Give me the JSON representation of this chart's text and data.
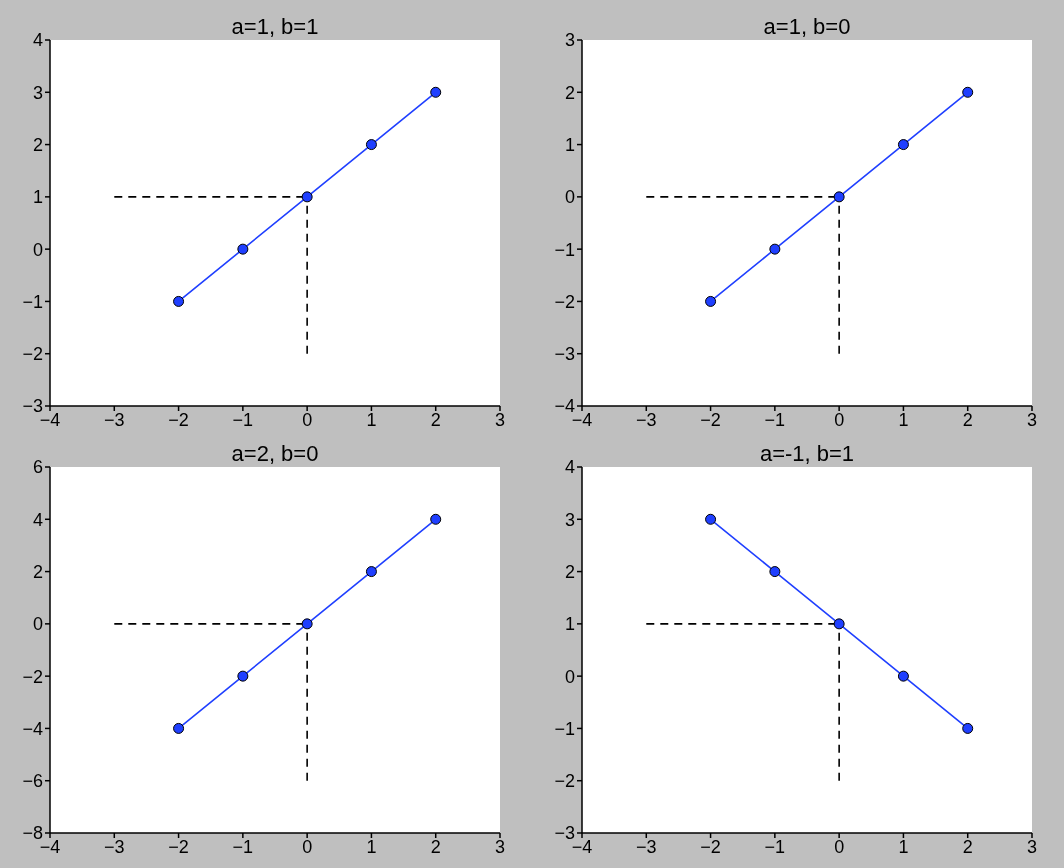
{
  "chart_data": [
    {
      "type": "line",
      "title": "a=1, b=1",
      "xlim": [
        -4,
        3
      ],
      "xticks": [
        -4,
        -3,
        -2,
        -1,
        0,
        1,
        2,
        3
      ],
      "ylim": [
        -3,
        4
      ],
      "yticks": [
        -3,
        -2,
        -1,
        0,
        1,
        2,
        3,
        4
      ],
      "series": [
        {
          "color": "#1f3fff",
          "marker": "circle",
          "line_style": "solid",
          "x": [
            -2,
            -1,
            0,
            1,
            2
          ],
          "values": [
            -1,
            0,
            1,
            2,
            3
          ]
        },
        {
          "color": "#000000",
          "marker": "none",
          "line_style": "dashed",
          "x": [
            -3,
            0
          ],
          "values": [
            1,
            1
          ]
        },
        {
          "color": "#000000",
          "marker": "none",
          "line_style": "dashed",
          "x": [
            0,
            0
          ],
          "values": [
            -2,
            1
          ]
        }
      ]
    },
    {
      "type": "line",
      "title": "a=1, b=0",
      "xlim": [
        -4,
        3
      ],
      "xticks": [
        -4,
        -3,
        -2,
        -1,
        0,
        1,
        2,
        3
      ],
      "ylim": [
        -4,
        3
      ],
      "yticks": [
        -4,
        -3,
        -2,
        -1,
        0,
        1,
        2,
        3
      ],
      "series": [
        {
          "color": "#1f3fff",
          "marker": "circle",
          "line_style": "solid",
          "x": [
            -2,
            -1,
            0,
            1,
            2
          ],
          "values": [
            -2,
            -1,
            0,
            1,
            2
          ]
        },
        {
          "color": "#000000",
          "marker": "none",
          "line_style": "dashed",
          "x": [
            -3,
            0
          ],
          "values": [
            0,
            0
          ]
        },
        {
          "color": "#000000",
          "marker": "none",
          "line_style": "dashed",
          "x": [
            0,
            0
          ],
          "values": [
            -3,
            0
          ]
        }
      ]
    },
    {
      "type": "line",
      "title": "a=2, b=0",
      "xlim": [
        -4,
        3
      ],
      "xticks": [
        -4,
        -3,
        -2,
        -1,
        0,
        1,
        2,
        3
      ],
      "ylim": [
        -8,
        6
      ],
      "yticks": [
        -8,
        -6,
        -4,
        -2,
        0,
        2,
        4,
        6
      ],
      "series": [
        {
          "color": "#1f3fff",
          "marker": "circle",
          "line_style": "solid",
          "x": [
            -2,
            -1,
            0,
            1,
            2
          ],
          "values": [
            -4,
            -2,
            0,
            2,
            4
          ]
        },
        {
          "color": "#000000",
          "marker": "none",
          "line_style": "dashed",
          "x": [
            -3,
            0
          ],
          "values": [
            0,
            0
          ]
        },
        {
          "color": "#000000",
          "marker": "none",
          "line_style": "dashed",
          "x": [
            0,
            0
          ],
          "values": [
            -6,
            0
          ]
        }
      ]
    },
    {
      "type": "line",
      "title": "a=-1, b=1",
      "xlim": [
        -4,
        3
      ],
      "xticks": [
        -4,
        -3,
        -2,
        -1,
        0,
        1,
        2,
        3
      ],
      "ylim": [
        -3,
        4
      ],
      "yticks": [
        -3,
        -2,
        -1,
        0,
        1,
        2,
        3,
        4
      ],
      "series": [
        {
          "color": "#1f3fff",
          "marker": "circle",
          "line_style": "solid",
          "x": [
            -2,
            -1,
            0,
            1,
            2
          ],
          "values": [
            3,
            2,
            1,
            0,
            -1
          ]
        },
        {
          "color": "#000000",
          "marker": "none",
          "line_style": "dashed",
          "x": [
            -3,
            0
          ],
          "values": [
            1,
            1
          ]
        },
        {
          "color": "#000000",
          "marker": "none",
          "line_style": "dashed",
          "x": [
            0,
            0
          ],
          "values": [
            -2,
            1
          ]
        }
      ]
    }
  ]
}
